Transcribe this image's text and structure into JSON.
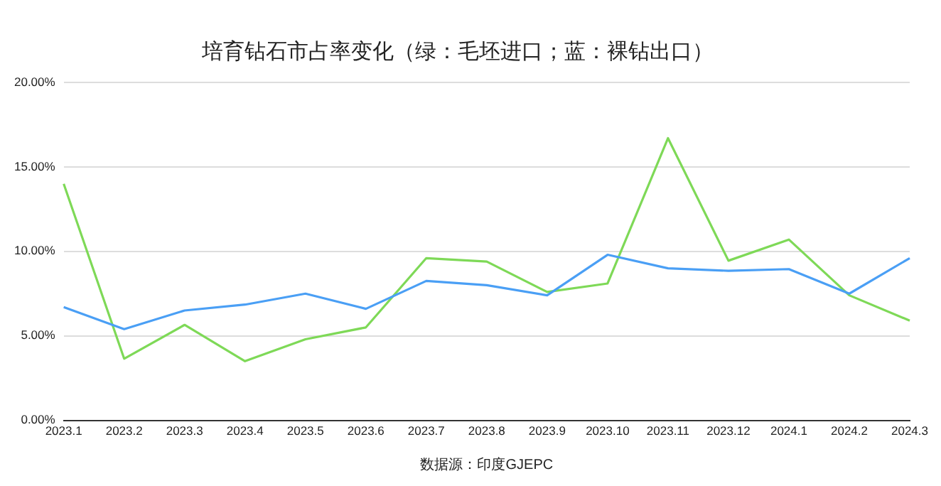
{
  "chart_data": {
    "type": "line",
    "title": "培育钻石市占率变化（绿：毛坯进口；蓝：裸钻出口）",
    "categories": [
      "2023.1",
      "2023.2",
      "2023.3",
      "2023.4",
      "2023.5",
      "2023.6",
      "2023.7",
      "2023.8",
      "2023.9",
      "2023.10",
      "2023.11",
      "2023.12",
      "2024.1",
      "2024.2",
      "2024.3"
    ],
    "series": [
      {
        "color": "#4a9ff5",
        "values": [
          6.7,
          5.4,
          6.5,
          6.85,
          7.5,
          6.6,
          8.25,
          8.0,
          7.4,
          9.8,
          9.0,
          8.85,
          8.95,
          7.5,
          9.6
        ]
      },
      {
        "color": "#7ed957",
        "values": [
          14.0,
          3.65,
          5.65,
          3.5,
          4.8,
          5.5,
          9.6,
          9.4,
          7.6,
          8.1,
          16.7,
          9.45,
          10.7,
          7.4,
          5.9
        ]
      }
    ],
    "ylim": [
      0,
      20
    ],
    "yticks": [
      {
        "value": 0,
        "label": "0.00%"
      },
      {
        "value": 5,
        "label": "5.00%"
      },
      {
        "value": 10,
        "label": "10.00%"
      },
      {
        "value": 15,
        "label": "15.00%"
      },
      {
        "value": 20,
        "label": "20.00%"
      }
    ],
    "grid": "y",
    "legend": false,
    "marker": "none",
    "line_style": "solid",
    "annotations": [
      "数据源：印度GJEPC"
    ]
  }
}
